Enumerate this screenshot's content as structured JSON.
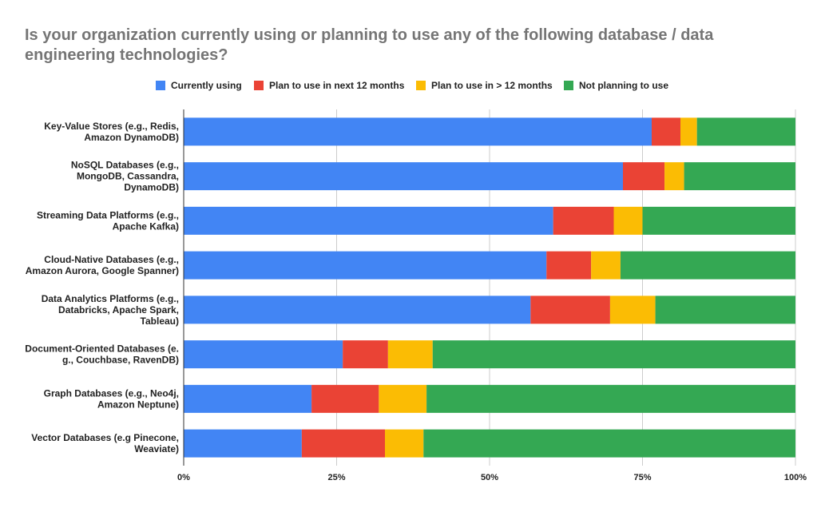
{
  "chart_data": {
    "type": "bar",
    "orientation": "horizontal",
    "stacked": "percent",
    "title": "Is your organization currently using or planning to use any of the following database / data engineering technologies?",
    "legend_position": "top",
    "grid": true,
    "xlim": [
      0,
      100
    ],
    "x_ticks": [
      "0%",
      "25%",
      "50%",
      "75%",
      "100%"
    ],
    "categories": [
      [
        "Key-Value Stores (e.g., Redis,",
        "Amazon DynamoDB)"
      ],
      [
        "NoSQL Databases (e.g.,",
        "MongoDB, Cassandra,",
        "DynamoDB)"
      ],
      [
        "Streaming Data Platforms (e.g.,",
        "Apache Kafka)"
      ],
      [
        "Cloud-Native Databases (e.g.,",
        "Amazon Aurora, Google Spanner)"
      ],
      [
        "Data Analytics Platforms (e.g.,",
        "Databricks, Apache Spark,",
        "Tableau)"
      ],
      [
        "Document-Oriented Databases (e.",
        "g., Couchbase, RavenDB)"
      ],
      [
        "Graph Databases (e.g., Neo4j,",
        "Amazon Neptune)"
      ],
      [
        "Vector Databases (e.g Pinecone,",
        "Weaviate)"
      ]
    ],
    "series": [
      {
        "name": "Currently using",
        "color": "#4285F4",
        "values": [
          76.5,
          71.8,
          60.4,
          59.3,
          56.7,
          26.0,
          20.9,
          19.3
        ]
      },
      {
        "name": "Plan to use in next 12 months",
        "color": "#EA4335",
        "values": [
          4.7,
          6.8,
          9.9,
          7.3,
          13.0,
          7.4,
          11.0,
          13.6
        ]
      },
      {
        "name": "Plan to use in > 12 months",
        "color": "#FBBC04",
        "values": [
          2.7,
          3.2,
          4.7,
          4.8,
          7.4,
          7.3,
          7.8,
          6.3
        ]
      },
      {
        "name": "Not planning to use",
        "color": "#34A853",
        "values": [
          16.1,
          18.2,
          25.0,
          28.6,
          22.9,
          59.3,
          60.3,
          60.8
        ]
      }
    ]
  }
}
